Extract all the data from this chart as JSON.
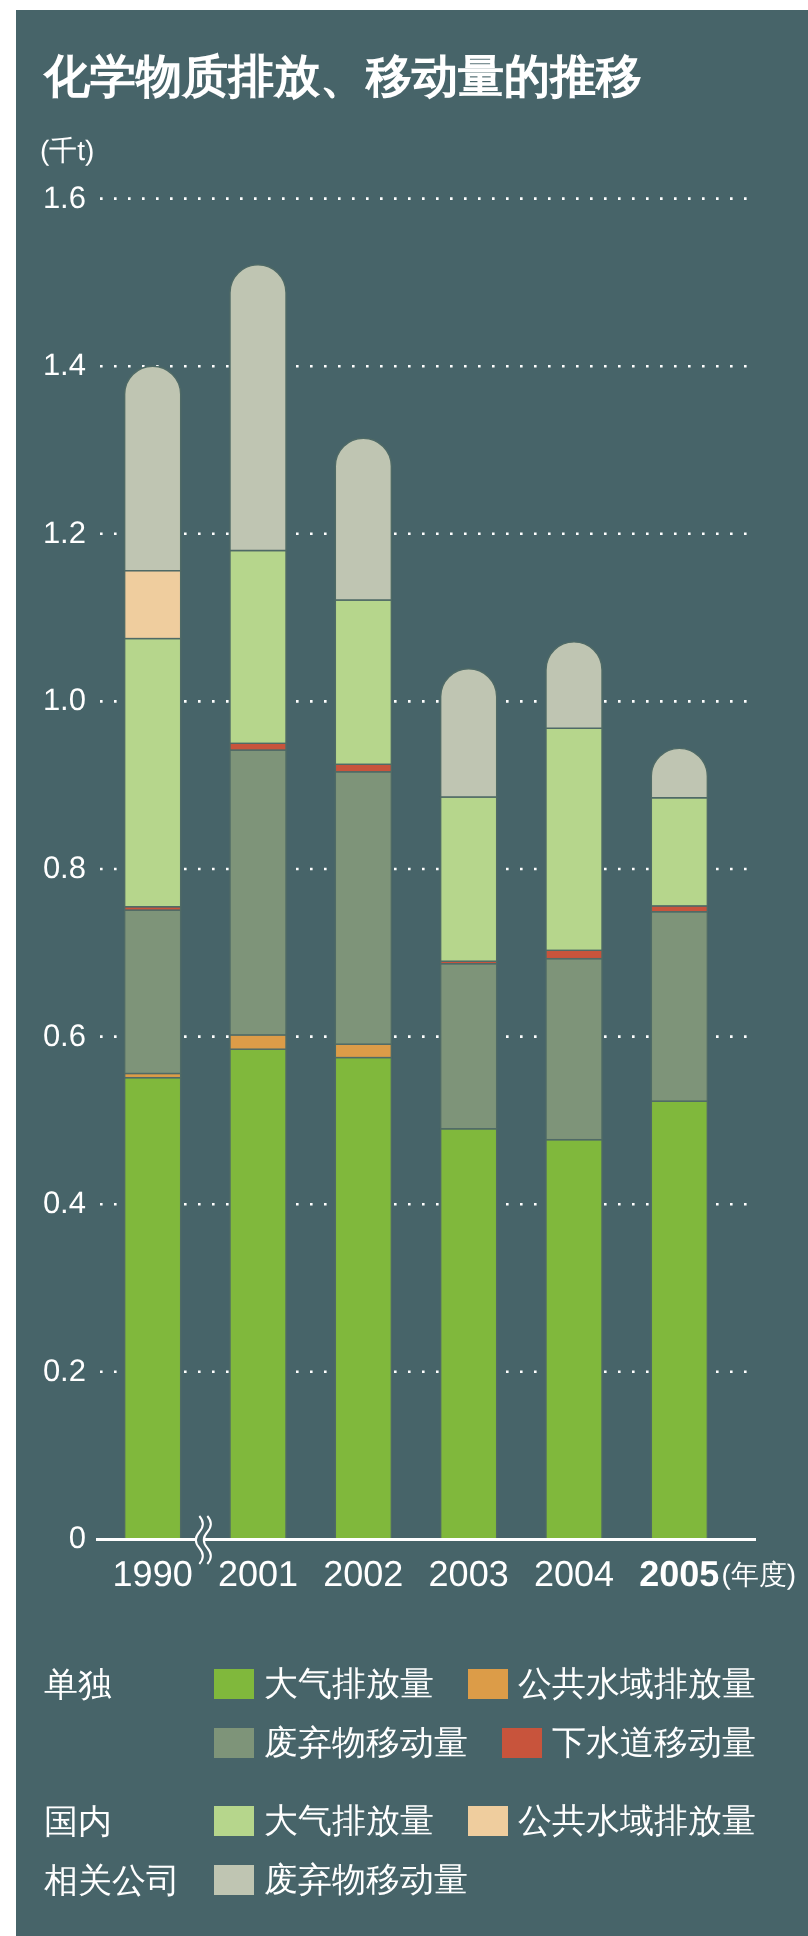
{
  "chart_data": {
    "type": "bar",
    "stacked": true,
    "title": "化学物质排放、移动量的推移",
    "ylabel": "(千t)",
    "xlabel": "(年度)",
    "categories": [
      "1990",
      "2001",
      "2002",
      "2003",
      "2004",
      "2005"
    ],
    "ylim": [
      0,
      1.6
    ],
    "yticks": [
      0,
      0.2,
      0.4,
      0.6,
      0.8,
      {
        "value": 1,
        "label": "1.0"
      },
      1.2,
      1.4,
      1.6
    ],
    "grid": "y",
    "legend": "bottom",
    "annotations": [
      "单独",
      "国内相关公司"
    ],
    "series": [
      {
        "name": "大气排放量",
        "color": "#80b83c",
        "values": [
          0.551,
          0.585,
          0.575,
          0.49,
          0.477,
          0.523
        ]
      },
      {
        "name": "公共水域排放量",
        "color": "#dc9c48",
        "values": [
          0.005,
          0.017,
          0.016,
          0,
          0,
          0
        ]
      },
      {
        "name": "废弃物移动量",
        "color": "#7e9479",
        "values": [
          0.195,
          0.34,
          0.325,
          0.197,
          0.216,
          0.226
        ]
      },
      {
        "name": "下水道移动量",
        "color": "#c8543c",
        "values": [
          0.004,
          0.008,
          0.009,
          0.003,
          0.01,
          0.007
        ]
      },
      {
        "name": "大气排放量",
        "color": "#b6d68c",
        "values": [
          0.32,
          0.23,
          0.196,
          0.196,
          0.265,
          0.129
        ]
      },
      {
        "name": "公共水域排放量",
        "color": "#efcd9e",
        "values": [
          0.081,
          0,
          0,
          0,
          0,
          0
        ]
      },
      {
        "name": "废弃物移动量",
        "color": "#bfc5b2",
        "values": [
          0.244,
          0.341,
          0.193,
          0.153,
          0.103,
          0.059
        ]
      }
    ]
  }
}
